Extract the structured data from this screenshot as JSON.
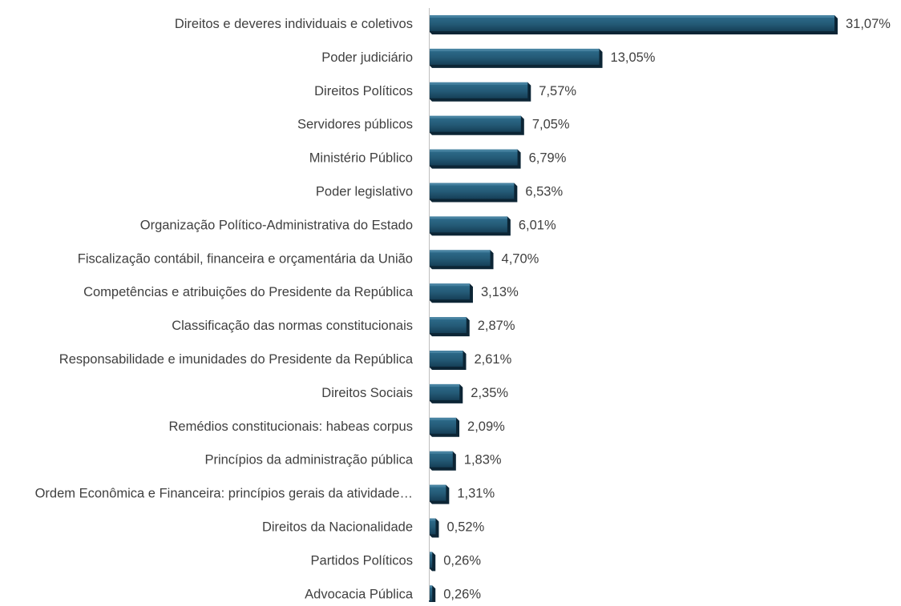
{
  "chart_data": {
    "type": "bar",
    "orientation": "horizontal",
    "categories": [
      "Direitos e deveres individuais e coletivos",
      "Poder judiciário",
      "Direitos Políticos",
      "Servidores públicos",
      "Ministério Público",
      "Poder legislativo",
      "Organização Político-Administrativa do Estado",
      "Fiscalização contábil, financeira e orçamentária da União",
      "Competências e atribuições do Presidente da República",
      "Classificação das normas constitucionais",
      "Responsabilidade e imunidades do Presidente da República",
      "Direitos Sociais",
      "Remédios constitucionais: habeas corpus",
      "Princípios da administração pública",
      "Ordem Econômica e Financeira: princípios gerais da atividade…",
      "Direitos da Nacionalidade",
      "Partidos Políticos",
      "Advocacia Pública"
    ],
    "values": [
      31.07,
      13.05,
      7.57,
      7.05,
      6.79,
      6.53,
      6.01,
      4.7,
      3.13,
      2.87,
      2.61,
      2.35,
      2.09,
      1.83,
      1.31,
      0.52,
      0.26,
      0.26
    ],
    "data_labels": [
      "31,07%",
      "13,05%",
      "7,57%",
      "7,05%",
      "6,79%",
      "6,53%",
      "6,01%",
      "4,70%",
      "3,13%",
      "2,87%",
      "2,61%",
      "2,35%",
      "2,09%",
      "1,83%",
      "1,31%",
      "0,52%",
      "0,26%",
      "0,26%"
    ],
    "unit": "%",
    "xlim": [
      0,
      31.07
    ],
    "grid": false,
    "legend": "none",
    "colors": {
      "bar_top": "#2f6f8f",
      "bar_bottom": "#163f57",
      "bar_bevel": "#0c2535",
      "axis": "#bfbfbf",
      "text": "#404040"
    }
  }
}
